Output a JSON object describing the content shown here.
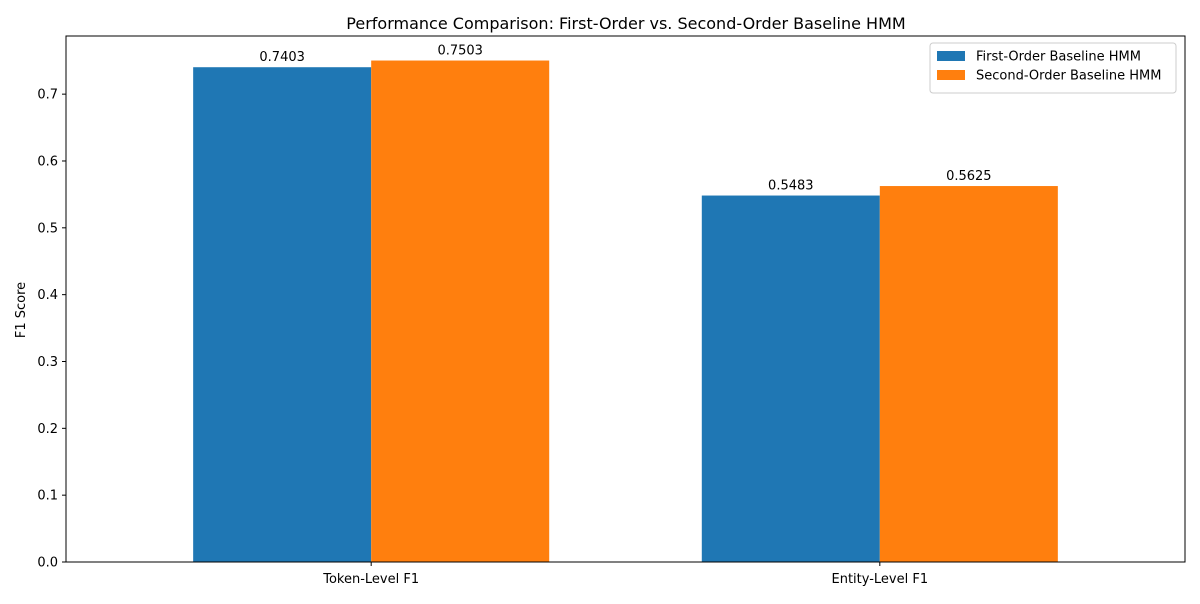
{
  "chart_data": {
    "type": "bar",
    "title": "Performance Comparison: First-Order vs. Second-Order Baseline HMM",
    "xlabel": "",
    "ylabel": "F1 Score",
    "categories": [
      "Token-Level F1",
      "Entity-Level F1"
    ],
    "series": [
      {
        "name": "First-Order Baseline HMM",
        "values": [
          0.7403,
          0.5483
        ],
        "labels": [
          "0.7403",
          "0.5483"
        ],
        "color": "#1f77b4"
      },
      {
        "name": "Second-Order Baseline HMM",
        "values": [
          0.7503,
          0.5625
        ],
        "labels": [
          "0.7503",
          "0.5625"
        ],
        "color": "#ff7f0e"
      }
    ],
    "ylim": [
      0,
      0.787
    ],
    "yticks": [
      0.0,
      0.1,
      0.2,
      0.3,
      0.4,
      0.5,
      0.6,
      0.7
    ],
    "ytick_labels": [
      "0.0",
      "0.1",
      "0.2",
      "0.3",
      "0.4",
      "0.5",
      "0.6",
      "0.7"
    ],
    "grid": false,
    "legend_position": "top-right"
  }
}
